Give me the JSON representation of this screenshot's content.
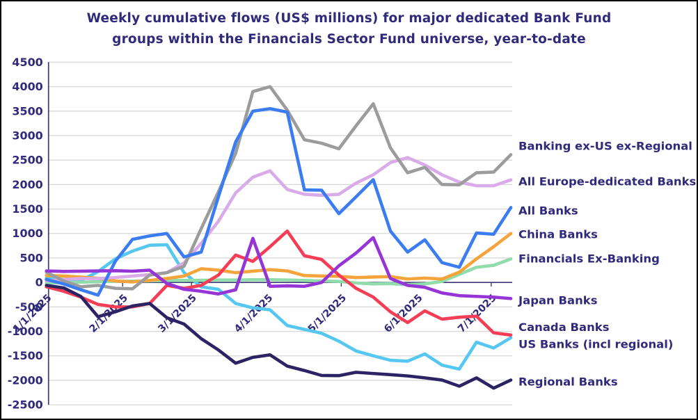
{
  "title": {
    "line1": "Weekly cumulative flows (US$ millions) for major dedicated Bank Fund",
    "line2": "groups within the Financials Sector Fund universe, year-to-date"
  },
  "chart_data": {
    "type": "line",
    "title": "Weekly cumulative flows (US$ millions) for major dedicated Bank Fund groups within the Financials Sector Fund universe, year-to-date",
    "xlabel": "",
    "ylabel": "",
    "ylim": [
      -2500,
      4500
    ],
    "y_tick_step": 500,
    "grid": true,
    "legend_position": "right-of-line-ends",
    "y_tick_labels": [
      "4500",
      "4000",
      "3500",
      "3000",
      "2500",
      "2000",
      "1500",
      "1000",
      "500",
      "0",
      "-500",
      "-1000",
      "-1500",
      "-2000",
      "-2500"
    ],
    "x_tick_labels": [
      "1/1/2025",
      "2/1/2025",
      "3/1/2025",
      "4/1/2025",
      "5/1/2025",
      "6/1/2025",
      "7/1/2025"
    ],
    "x_tick_week_index": [
      0,
      4.43,
      8.43,
      12.86,
      17.14,
      21.57,
      25.86
    ],
    "x_dates": [
      "1/1/2025",
      "1/8/2025",
      "1/15/2025",
      "1/22/2025",
      "1/29/2025",
      "2/5/2025",
      "2/12/2025",
      "2/19/2025",
      "2/26/2025",
      "3/5/2025",
      "3/12/2025",
      "3/19/2025",
      "3/26/2025",
      "4/2/2025",
      "4/9/2025",
      "4/16/2025",
      "4/23/2025",
      "4/30/2025",
      "5/7/2025",
      "5/14/2025",
      "5/21/2025",
      "5/28/2025",
      "6/4/2025",
      "6/11/2025",
      "6/18/2025",
      "6/25/2025",
      "7/2/2025",
      "7/9/2025"
    ],
    "colors": {
      "grid": "#d8d8d8",
      "axis": "#3c3878",
      "text": "#2f2a7a"
    },
    "series": [
      {
        "name": "US Banks (incl regional)",
        "color": "#55c7f1",
        "label_dy": 9,
        "values": [
          90,
          60,
          40,
          220,
          480,
          640,
          760,
          770,
          200,
          -90,
          -140,
          -430,
          -520,
          -560,
          -880,
          -960,
          -1040,
          -1200,
          -1400,
          -1500,
          -1590,
          -1610,
          -1460,
          -1690,
          -1770,
          -1220,
          -1340,
          -1130
        ]
      },
      {
        "name": "Financials Ex-Banking",
        "color": "#90dcab",
        "label_dy": -1,
        "values": [
          -10,
          -5,
          5,
          15,
          20,
          25,
          30,
          40,
          40,
          45,
          50,
          50,
          55,
          55,
          50,
          40,
          30,
          20,
          -10,
          -30,
          -25,
          -45,
          -30,
          20,
          165,
          310,
          350,
          480
        ]
      },
      {
        "name": "China Banks",
        "color": "#f4a43b",
        "label_dy": 1,
        "values": [
          140,
          130,
          110,
          85,
          30,
          10,
          40,
          80,
          130,
          280,
          250,
          200,
          230,
          260,
          235,
          140,
          130,
          125,
          100,
          110,
          120,
          70,
          90,
          70,
          210,
          480,
          730,
          1000
        ]
      },
      {
        "name": "All Europe-dedicated Banks",
        "color": "#d9abe8",
        "label_dy": 2,
        "values": [
          30,
          60,
          80,
          80,
          100,
          130,
          160,
          200,
          400,
          800,
          1250,
          1830,
          2150,
          2280,
          1900,
          1800,
          1780,
          1800,
          2030,
          2200,
          2450,
          2550,
          2400,
          2200,
          2050,
          1975,
          1975,
          2095
        ]
      },
      {
        "name": "Banking ex-US ex-Regional",
        "color": "#9c9c9c",
        "label_dy": -13,
        "values": [
          210,
          30,
          -90,
          -60,
          -120,
          -130,
          150,
          200,
          330,
          1100,
          1850,
          2640,
          3900,
          4000,
          3520,
          2915,
          2845,
          2730,
          3200,
          3650,
          2750,
          2240,
          2350,
          2000,
          1995,
          2240,
          2255,
          2610
        ]
      },
      {
        "name": "All Banks",
        "color": "#3b7df1",
        "label_dy": 4,
        "values": [
          60,
          -30,
          -150,
          -260,
          430,
          880,
          950,
          1000,
          520,
          620,
          1750,
          2870,
          3500,
          3550,
          3480,
          1890,
          1885,
          1405,
          1750,
          2100,
          1050,
          620,
          870,
          405,
          310,
          1010,
          985,
          1530
        ]
      },
      {
        "name": "Canada Banks",
        "color": "#f53e56",
        "label_dy": -12,
        "values": [
          -90,
          -180,
          -300,
          -450,
          -500,
          -500,
          -430,
          -60,
          -120,
          -60,
          150,
          560,
          430,
          730,
          1050,
          545,
          470,
          150,
          -120,
          -300,
          -600,
          -820,
          -580,
          -750,
          -710,
          -690,
          -1030,
          -1075
        ]
      },
      {
        "name": "Japan Banks",
        "color": "#9535d6",
        "label_dy": 2,
        "values": [
          235,
          225,
          230,
          235,
          240,
          230,
          250,
          -20,
          -140,
          -180,
          -235,
          -150,
          900,
          -80,
          -70,
          -80,
          0,
          340,
          600,
          915,
          80,
          -60,
          -100,
          -215,
          -270,
          -285,
          -300,
          -330
        ]
      },
      {
        "name": "Regional Banks",
        "color": "#2b2363",
        "label_dy": 2,
        "values": [
          -60,
          -110,
          -285,
          -700,
          -600,
          -480,
          -430,
          -720,
          -850,
          -1150,
          -1380,
          -1650,
          -1530,
          -1480,
          -1710,
          -1800,
          -1900,
          -1905,
          -1835,
          -1860,
          -1885,
          -1910,
          -1950,
          -1995,
          -2120,
          -1950,
          -2160,
          -1995
        ]
      }
    ]
  }
}
